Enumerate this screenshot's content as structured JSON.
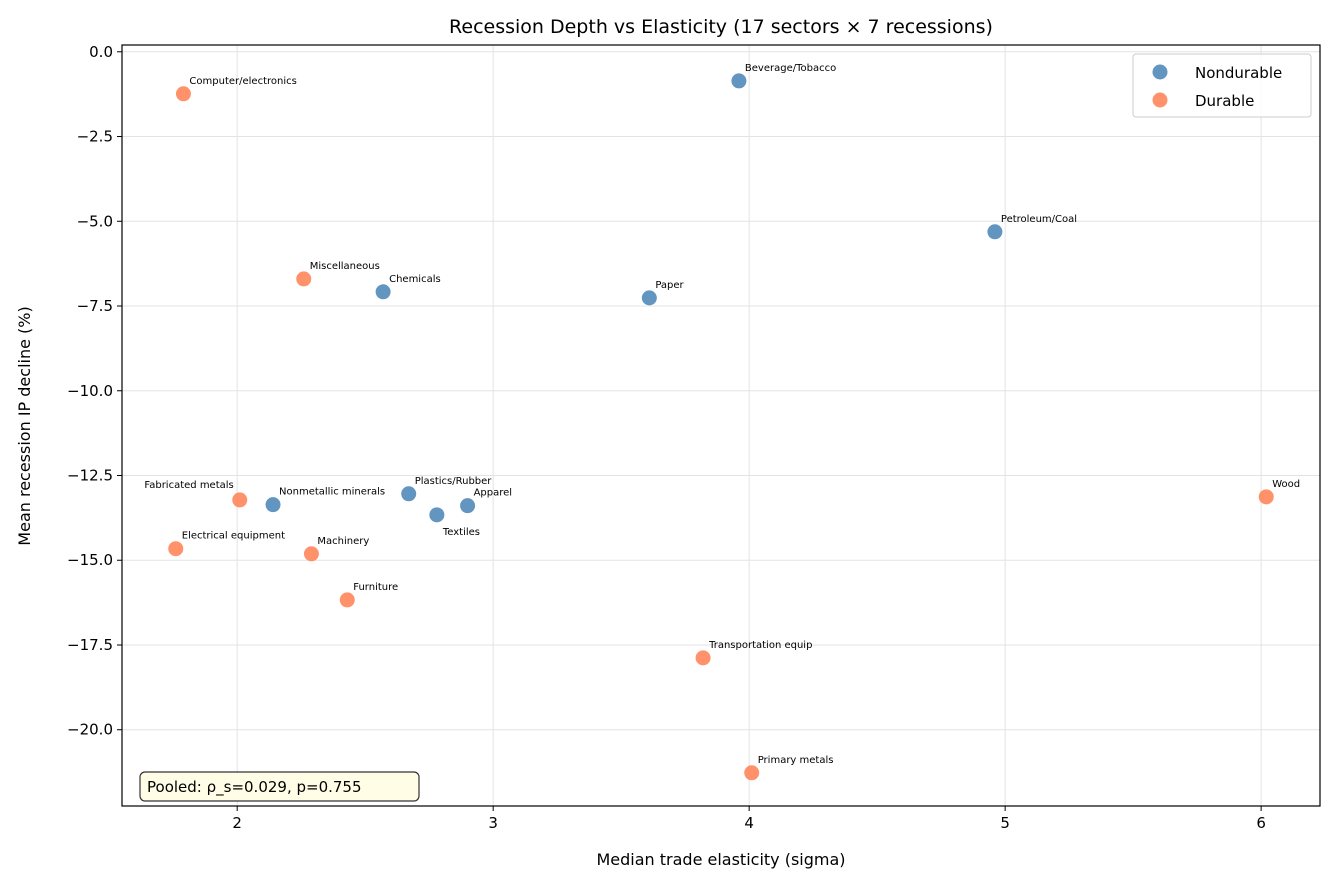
{
  "chart_data": {
    "type": "scatter",
    "title": "Recession Depth vs Elasticity (17 sectors × 7 recessions)",
    "xlabel": "Median trade elasticity (sigma)",
    "ylabel": "Mean recession IP decline (%)",
    "xlim": [
      1.55,
      6.23
    ],
    "ylim": [
      -22.25,
      0.2
    ],
    "xticks": [
      2,
      3,
      4,
      5,
      6
    ],
    "xtick_labels": [
      "2",
      "3",
      "4",
      "5",
      "6"
    ],
    "yticks": [
      0,
      -2.5,
      -5,
      -7.5,
      -10,
      -12.5,
      -15,
      -17.5,
      -20
    ],
    "ytick_labels": [
      "0.0",
      "−2.5",
      "−5.0",
      "−7.5",
      "−10.0",
      "−12.5",
      "−15.0",
      "−17.5",
      "−20.0"
    ],
    "grid": true,
    "legend_position": "top-right",
    "annotation": "Pooled: ρ_s=0.029, p=0.755",
    "series": [
      {
        "name": "Nondurable",
        "color": "#4682b4",
        "points": [
          {
            "label": "Beverage/Tobacco",
            "x": 3.96,
            "y": -0.86
          },
          {
            "label": "Petroleum/Coal",
            "x": 4.96,
            "y": -5.31
          },
          {
            "label": "Chemicals",
            "x": 2.57,
            "y": -7.08
          },
          {
            "label": "Paper",
            "x": 3.61,
            "y": -7.26
          },
          {
            "label": "Nonmetallic minerals",
            "x": 2.14,
            "y": -13.36
          },
          {
            "label": "Plastics/Rubber",
            "x": 2.67,
            "y": -13.04
          },
          {
            "label": "Textiles",
            "x": 2.78,
            "y": -13.66
          },
          {
            "label": "Apparel",
            "x": 2.9,
            "y": -13.39
          }
        ]
      },
      {
        "name": "Durable",
        "color": "#ff7f50",
        "points": [
          {
            "label": "Computer/electronics",
            "x": 1.79,
            "y": -1.24
          },
          {
            "label": "Miscellaneous",
            "x": 2.26,
            "y": -6.7
          },
          {
            "label": "Fabricated metals",
            "x": 2.01,
            "y": -13.22
          },
          {
            "label": "Wood",
            "x": 6.02,
            "y": -13.13
          },
          {
            "label": "Electrical equipment",
            "x": 1.76,
            "y": -14.66
          },
          {
            "label": "Machinery",
            "x": 2.29,
            "y": -14.81
          },
          {
            "label": "Furniture",
            "x": 2.43,
            "y": -16.17
          },
          {
            "label": "Transportation equip",
            "x": 3.82,
            "y": -17.88
          },
          {
            "label": "Primary metals",
            "x": 4.01,
            "y": -21.27
          }
        ]
      }
    ]
  }
}
